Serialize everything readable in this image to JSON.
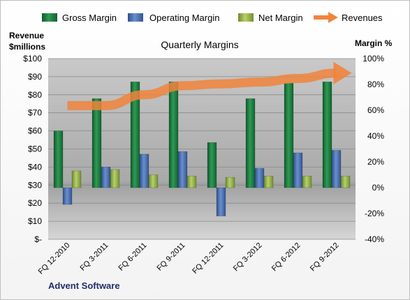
{
  "chart_data": {
    "type": "bar",
    "title": "Quarterly Margins",
    "company": "Advent Software",
    "left_axis_label_line1": "Revenue",
    "left_axis_label_line2": "$millions",
    "right_axis_label": "Margin %",
    "categories": [
      "FQ 12-2010",
      "FQ 3-2011",
      "FQ 6-2011",
      "FQ 9-2011",
      "FQ 12-2011",
      "FQ 3-2012",
      "FQ 6-2012",
      "FQ 9-2012"
    ],
    "left_ylim": [
      0,
      100
    ],
    "left_ticks": [
      "$-",
      "$10",
      "$20",
      "$30",
      "$40",
      "$50",
      "$60",
      "$70",
      "$80",
      "$90",
      "$100"
    ],
    "right_ylim": [
      -40,
      100
    ],
    "right_ticks": [
      "-40%",
      "-20%",
      "0%",
      "20%",
      "40%",
      "60%",
      "80%",
      "100%"
    ],
    "grid": true,
    "legend_position": "top",
    "series": [
      {
        "name": "Gross Margin",
        "axis": "right",
        "color": "#1f7a3f",
        "values": [
          44,
          69,
          82,
          82,
          35,
          69,
          81,
          82
        ]
      },
      {
        "name": "Operating Margin",
        "axis": "right",
        "color": "#4a6fb0",
        "values": [
          -13,
          16,
          26,
          28,
          -22,
          15,
          27,
          29
        ]
      },
      {
        "name": "Net Margin",
        "axis": "right",
        "color": "#8fb04a",
        "values": [
          13,
          14,
          10,
          9,
          8,
          9,
          9,
          9
        ]
      },
      {
        "name": "Revenues",
        "axis": "left",
        "type": "line",
        "color": "#f0843c",
        "values": [
          74,
          74,
          80,
          85,
          86,
          87,
          89,
          92
        ]
      }
    ]
  }
}
